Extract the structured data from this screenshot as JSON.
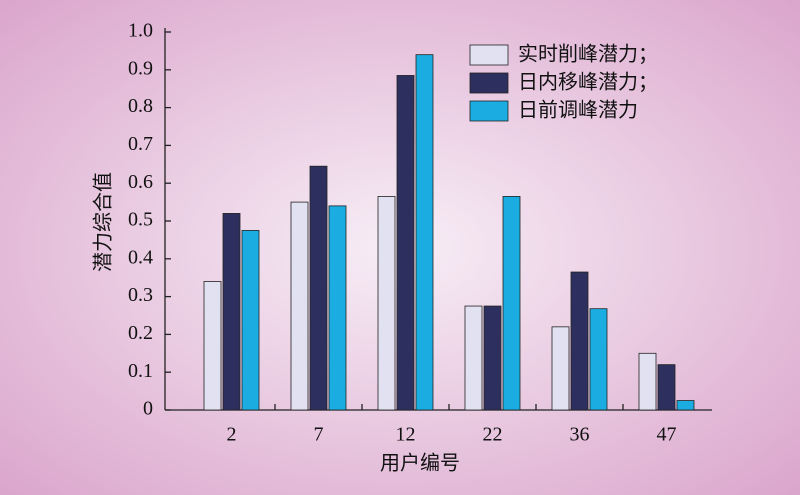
{
  "chart_data": {
    "type": "bar",
    "x_label": "用户编号",
    "y_label": "潜力综合值",
    "categories": [
      "2",
      "7",
      "12",
      "22",
      "36",
      "47"
    ],
    "series": [
      {
        "name": "实时削峰潜力；",
        "color": "#e2e1f2",
        "values": [
          0.34,
          0.55,
          0.565,
          0.275,
          0.22,
          0.15
        ]
      },
      {
        "name": "日内移峰潜力；",
        "color": "#2d2f5e",
        "values": [
          0.52,
          0.645,
          0.885,
          0.275,
          0.365,
          0.12
        ]
      },
      {
        "name": "日前调峰潜力",
        "color": "#1badE2",
        "values": [
          0.475,
          0.54,
          0.94,
          0.565,
          0.268,
          0.025
        ]
      }
    ],
    "ylim": [
      0,
      1
    ],
    "yticks": [
      0,
      0.1,
      0.2,
      0.3,
      0.4,
      0.5,
      0.6,
      0.7,
      0.8,
      0.9,
      {
        "value": 1,
        "label": "1.0"
      }
    ],
    "legend": "upper right"
  }
}
